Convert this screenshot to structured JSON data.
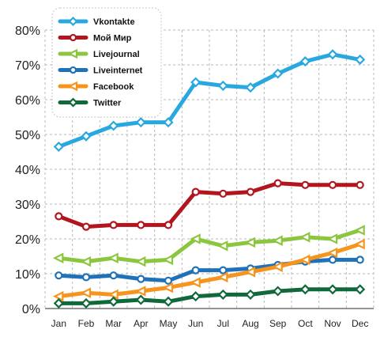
{
  "chart_data": {
    "type": "line",
    "categories": [
      "Jan",
      "Feb",
      "Mar",
      "Apr",
      "May",
      "Jun",
      "Jul",
      "Aug",
      "Sep",
      "Oct",
      "Nov",
      "Dec"
    ],
    "ylim": [
      0,
      80
    ],
    "yticks": [
      0,
      10,
      20,
      30,
      40,
      50,
      60,
      70,
      80
    ],
    "ytick_labels": [
      "0%",
      "10%",
      "20%",
      "30%",
      "40%",
      "50%",
      "60%",
      "70%",
      "80%"
    ],
    "grid": true,
    "legend": "top-left",
    "series": [
      {
        "name": "Vkontakte",
        "color": "#29a8e0",
        "marker": "diamond",
        "values": [
          46.5,
          49.5,
          52.5,
          53.5,
          53.5,
          65.0,
          64.0,
          63.5,
          67.5,
          71.0,
          73.0,
          71.5
        ]
      },
      {
        "name": "Мой Мир",
        "color": "#b3151f",
        "marker": "circle",
        "values": [
          26.5,
          23.5,
          24.0,
          24.0,
          24.0,
          33.5,
          33.0,
          33.5,
          36.0,
          35.5,
          35.5,
          35.5
        ]
      },
      {
        "name": "Livejournal",
        "color": "#8cc63e",
        "marker": "triangle-left",
        "values": [
          14.5,
          13.5,
          14.5,
          13.5,
          14.0,
          20.0,
          18.0,
          19.0,
          19.5,
          20.5,
          20.0,
          22.5
        ]
      },
      {
        "name": "Liveinternet",
        "color": "#1f72b8",
        "marker": "circle",
        "values": [
          9.5,
          9.0,
          9.5,
          8.5,
          8.0,
          11.0,
          11.0,
          11.5,
          12.5,
          13.5,
          14.0,
          14.0
        ]
      },
      {
        "name": "Facebook",
        "color": "#f7941d",
        "marker": "triangle-left",
        "values": [
          3.5,
          4.5,
          4.0,
          5.0,
          6.0,
          7.5,
          9.0,
          10.5,
          12.0,
          14.0,
          16.0,
          18.5
        ]
      },
      {
        "name": "Twitter",
        "color": "#10693a",
        "marker": "diamond",
        "values": [
          1.5,
          1.5,
          2.0,
          2.5,
          2.0,
          3.5,
          4.0,
          4.0,
          5.0,
          5.5,
          5.5,
          5.5
        ]
      }
    ]
  }
}
